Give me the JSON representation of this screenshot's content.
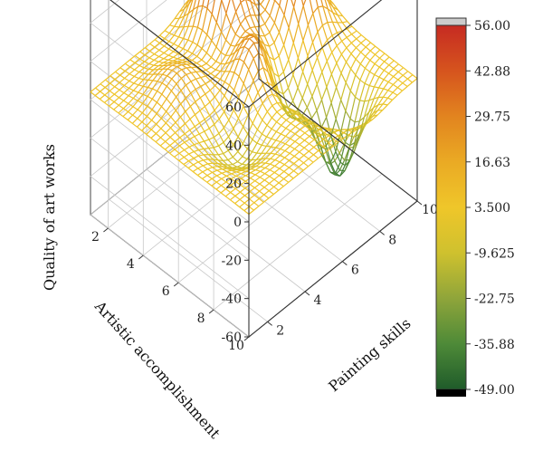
{
  "chart_data": {
    "type": "surface",
    "render": "wireframe",
    "x_axis": {
      "label": "Painting skills",
      "ticks": [
        "2",
        "4",
        "6",
        "8",
        "10"
      ],
      "range": [
        1,
        10
      ]
    },
    "y_axis": {
      "label": "Artistic accomplishment",
      "ticks": [
        "2",
        "4",
        "6",
        "8",
        "10"
      ],
      "range": [
        1,
        10
      ]
    },
    "z_axis": {
      "label": "Quality of art works",
      "ticks": [
        "-60",
        "-40",
        "-20",
        "0",
        "20",
        "40",
        "60"
      ],
      "range": [
        -60,
        60
      ]
    },
    "surface_extremes": {
      "max": 56.0,
      "min": -49.0
    },
    "colorbar": {
      "ticks": [
        "56.00",
        "42.88",
        "29.75",
        "16.63",
        "3.500",
        "-9.625",
        "-22.75",
        "-35.88",
        "-49.00"
      ],
      "range": [
        -49.0,
        56.0
      ],
      "colors": [
        "#c62b22",
        "#d6541e",
        "#e2841f",
        "#eaaa24",
        "#efc62a",
        "#cfc12e",
        "#8fa53a",
        "#4e8a38",
        "#1f5b2a"
      ],
      "over_color": "#cccccc",
      "under_color": "#000000"
    },
    "grid": true
  }
}
